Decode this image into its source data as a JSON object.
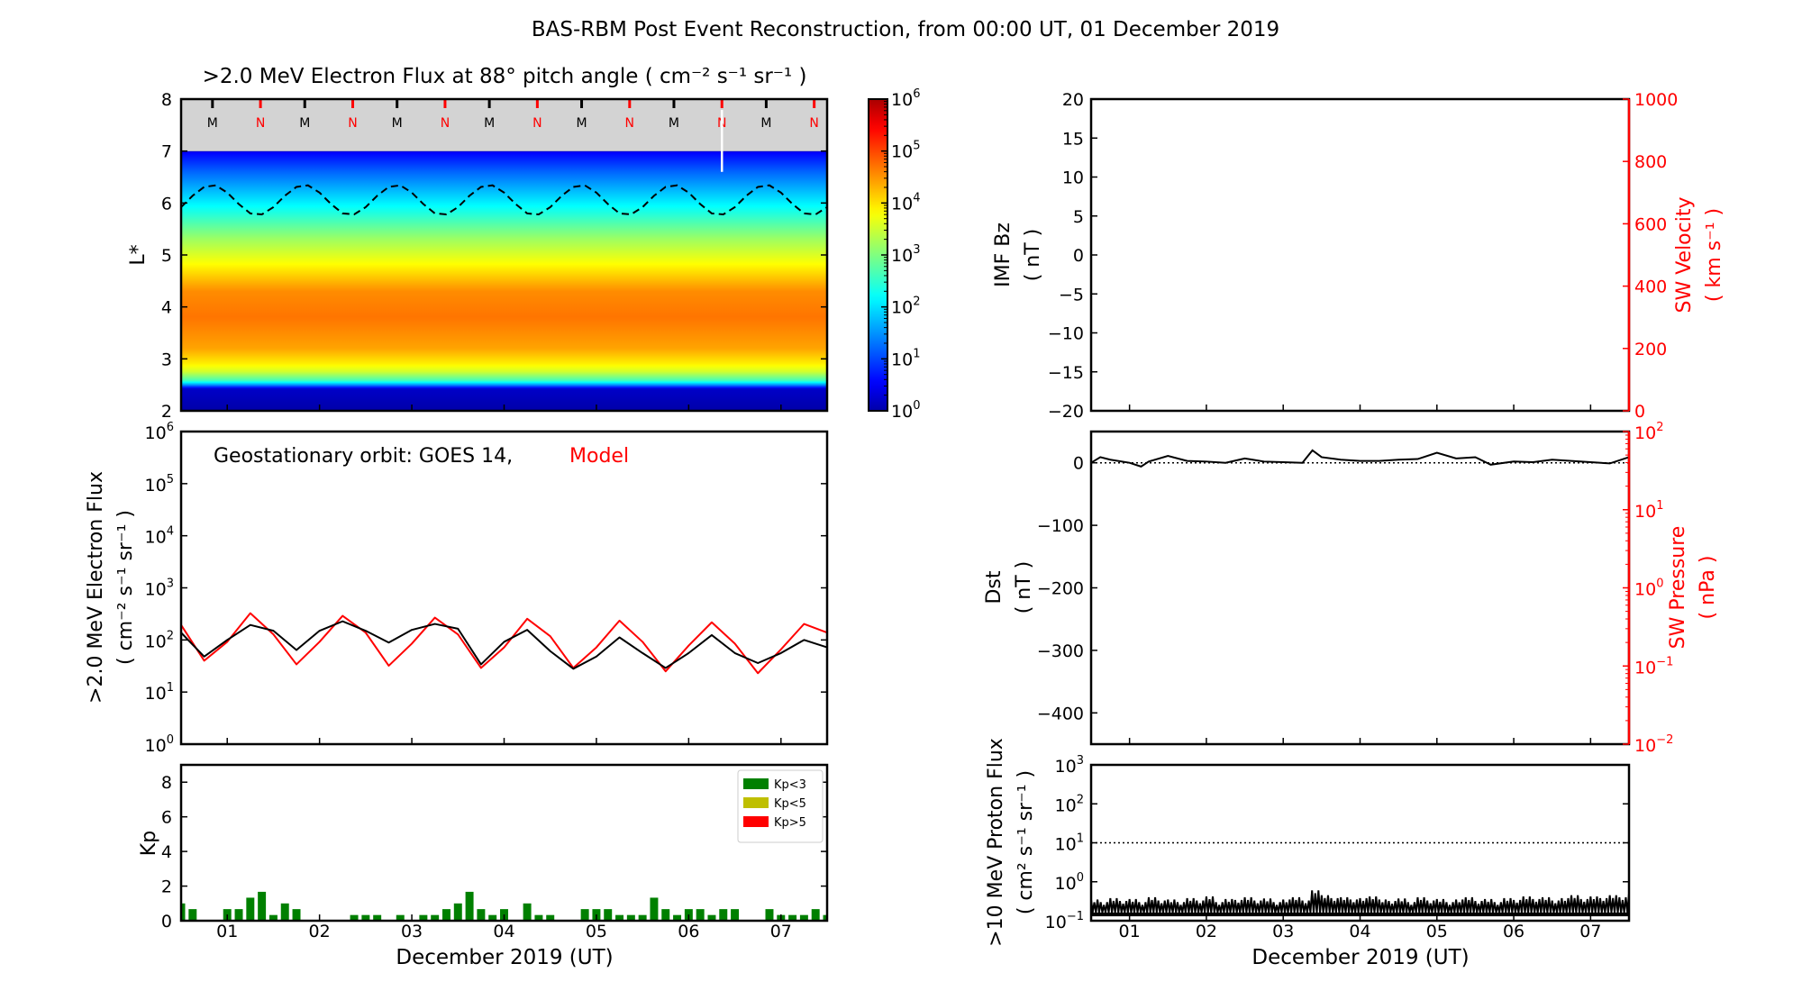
{
  "title": "BAS-RBM Post Event Reconstruction, from 00:00 UT, 01 December 2019",
  "chart_data": [
    {
      "id": "lstar_flux",
      "type": "heatmap",
      "title": ">2.0 MeV Electron Flux at 88° pitch angle ( cm⁻² s⁻¹ sr⁻¹ )",
      "ylabel": "L*",
      "xlim": [
        0.5,
        7.5
      ],
      "ylim": [
        2,
        8
      ],
      "yticks": [
        2,
        3,
        4,
        5,
        6,
        7,
        8
      ],
      "no_data_above_L": 7,
      "no_data_color": "#d3d3d3",
      "colormap": "jet",
      "colorbar": {
        "scale": "log",
        "range_exp": [
          0,
          6
        ],
        "tick_exps": [
          0,
          1,
          2,
          3,
          4,
          5,
          6
        ],
        "tick_base": "10"
      },
      "flux_profile_log10": {
        "L": [
          2.0,
          2.42,
          2.5,
          2.58,
          2.75,
          2.9,
          3.2,
          3.8,
          4.3,
          4.8,
          5.3,
          5.8,
          6.2,
          6.6,
          7.0
        ],
        "log10_flux": [
          0.0,
          0.2,
          1.5,
          2.6,
          3.5,
          3.9,
          4.4,
          4.7,
          4.55,
          3.85,
          3.2,
          2.4,
          1.8,
          1.2,
          0.5
        ]
      },
      "magnetopause_dashed": {
        "x_start": 0.5,
        "x_step_days": 0.125,
        "L": [
          5.92,
          6.14,
          6.31,
          6.34,
          6.2,
          5.98,
          5.8,
          5.78,
          5.92,
          6.14,
          6.31,
          6.34,
          6.2,
          5.98,
          5.8,
          5.78,
          5.92,
          6.14,
          6.31,
          6.34,
          6.2,
          5.98,
          5.8,
          5.78,
          5.92,
          6.14,
          6.31,
          6.34,
          6.2,
          5.98,
          5.8,
          5.78,
          5.92,
          6.14,
          6.31,
          6.34,
          6.2,
          5.98,
          5.8,
          5.78,
          5.92,
          6.14,
          6.31,
          6.34,
          6.2,
          5.98,
          5.8,
          5.78,
          5.92,
          6.14,
          6.31,
          6.34,
          6.2,
          5.98,
          5.8,
          5.78,
          5.92
        ]
      },
      "local_time_markers": [
        {
          "label": "M",
          "color": "#000000",
          "days": [
            0.84,
            1.84,
            2.84,
            3.84,
            4.84,
            5.84,
            6.84
          ]
        },
        {
          "label": "N",
          "color": "#ff0000",
          "days": [
            1.36,
            2.36,
            3.36,
            4.36,
            5.36,
            6.36,
            7.36
          ]
        }
      ],
      "white_line": {
        "x": 6.36,
        "L_from": 8,
        "L_to": 6.6
      }
    },
    {
      "id": "geo_flux",
      "type": "line",
      "ylabel": [
        ">2.0 MeV Electron Flux",
        "( cm⁻² s⁻¹ sr⁻¹ )"
      ],
      "annotation": {
        "text": "Geostationary orbit:   GOES 14,",
        "model_text": "Model"
      },
      "xlim": [
        0.5,
        7.5
      ],
      "yscale": "log",
      "ylim": [
        1,
        1000000
      ],
      "tick_exps": [
        0,
        1,
        2,
        3,
        4,
        5,
        6
      ],
      "tick_base": "10",
      "x": [
        0.5,
        0.75,
        1.0,
        1.25,
        1.5,
        1.75,
        2.0,
        2.25,
        2.5,
        2.75,
        3.0,
        3.25,
        3.5,
        3.75,
        4.0,
        4.25,
        4.5,
        4.75,
        5.0,
        5.25,
        5.5,
        5.75,
        6.0,
        6.25,
        6.5,
        6.75,
        7.0,
        7.25,
        7.5
      ],
      "series": [
        {
          "name": "GOES 14",
          "color": "#000000",
          "values": [
            138,
            48,
            100,
            194,
            150,
            64,
            150,
            228,
            150,
            89,
            156,
            203,
            164,
            34,
            92,
            156,
            61,
            28,
            48,
            112,
            56,
            29,
            56,
            124,
            56,
            36,
            56,
            100,
            72
          ]
        },
        {
          "name": "Model",
          "color": "#ff0000",
          "values": [
            194,
            40,
            92,
            326,
            128,
            34,
            92,
            290,
            138,
            32,
            85,
            268,
            128,
            29,
            72,
            255,
            118,
            29,
            72,
            235,
            92,
            25,
            78,
            218,
            85,
            23,
            66,
            203,
            138
          ]
        }
      ]
    },
    {
      "id": "kp",
      "type": "bar",
      "ylabel": "Kp",
      "xlabel": "December 2019 (UT)",
      "xlim": [
        0.5,
        7.5
      ],
      "ylim": [
        0,
        9
      ],
      "yticks": [
        0,
        2,
        4,
        6,
        8
      ],
      "xtick_labels": [
        "01",
        "02",
        "03",
        "04",
        "05",
        "06",
        "07"
      ],
      "xtick_values": [
        1,
        2,
        3,
        4,
        5,
        6,
        7
      ],
      "legend": [
        {
          "label": "Kp<3",
          "color": "#008000"
        },
        {
          "label": "Kp<5",
          "color": "#bfbf00"
        },
        {
          "label": "Kp>5",
          "color": "#ff0000"
        }
      ],
      "legend_position": "top-right",
      "x_start": 0.5,
      "x_step_days": 0.125,
      "values": [
        1.0,
        0.67,
        0,
        0,
        0.67,
        0.67,
        1.33,
        1.67,
        0.33,
        1.0,
        0.67,
        0,
        0,
        0,
        0,
        0.33,
        0.33,
        0.33,
        0,
        0.33,
        0,
        0.33,
        0.33,
        0.67,
        1.0,
        1.67,
        0.67,
        0.33,
        0.67,
        0,
        1.0,
        0.33,
        0.33,
        0,
        0,
        0.67,
        0.67,
        0.67,
        0.33,
        0.33,
        0.33,
        1.33,
        0.67,
        0.33,
        0.67,
        0.67,
        0.33,
        0.67,
        0.67,
        0,
        0,
        0.67,
        0.33,
        0.33,
        0.33,
        0.67,
        0.33
      ]
    },
    {
      "id": "imf_bz",
      "type": "line",
      "ylabel": [
        "IMF Bz",
        "( nT )"
      ],
      "ylabel_right": [
        "SW Velocity",
        "( km s⁻¹ )"
      ],
      "right_color": "#ff0000",
      "xlim": [
        0.5,
        7.5
      ],
      "ylim": [
        -20,
        20
      ],
      "yticks": [
        -20,
        -15,
        -10,
        -5,
        0,
        5,
        10,
        15,
        20
      ],
      "ylim_right": [
        0,
        1000
      ],
      "yticks_right": [
        0,
        200,
        400,
        600,
        800,
        1000
      ],
      "series": []
    },
    {
      "id": "dst",
      "type": "line",
      "ylabel": [
        "Dst",
        "( nT )"
      ],
      "ylabel_right": [
        "SW Pressure",
        "( nPa )"
      ],
      "right_color": "#ff0000",
      "xlim": [
        0.5,
        7.5
      ],
      "ylim": [
        -450,
        50
      ],
      "yticks": [
        0,
        -100,
        -200,
        -300,
        -400
      ],
      "right_scale": "log",
      "right_tick_exps": [
        -2,
        -1,
        0,
        1,
        2
      ],
      "tick_base": "10",
      "zero_line": 0,
      "x": [
        0.5,
        0.62,
        0.75,
        1.0,
        1.15,
        1.25,
        1.5,
        1.75,
        2.0,
        2.25,
        2.5,
        2.75,
        3.0,
        3.25,
        3.38,
        3.5,
        3.75,
        4.0,
        4.25,
        4.5,
        4.75,
        5.0,
        5.25,
        5.5,
        5.7,
        6.0,
        6.25,
        6.5,
        6.75,
        7.0,
        7.25,
        7.5
      ],
      "series": [
        {
          "name": "Dst",
          "color": "#000000",
          "values": [
            0,
            9,
            5,
            0,
            -6,
            2,
            11,
            3,
            2,
            0,
            7,
            2,
            1,
            0,
            20,
            9,
            5,
            3,
            3,
            5,
            6,
            16,
            7,
            9,
            -3,
            2,
            1,
            5,
            3,
            1,
            -1,
            9
          ]
        }
      ]
    },
    {
      "id": "proton_flux",
      "type": "line",
      "ylabel": [
        ">10 MeV Proton Flux",
        "( cm² s⁻¹ sr⁻¹ )"
      ],
      "xlabel": "December 2019 (UT)",
      "xlim": [
        0.5,
        7.5
      ],
      "yscale": "log",
      "ylim": [
        0.1,
        1000
      ],
      "tick_exps": [
        -1,
        0,
        1,
        2,
        3
      ],
      "tick_base": "10",
      "xtick_labels": [
        "01",
        "02",
        "03",
        "04",
        "05",
        "06",
        "07"
      ],
      "xtick_values": [
        1,
        2,
        3,
        4,
        5,
        6,
        7
      ],
      "threshold": 10,
      "x_start": 0.5,
      "x_step_days": 0.125,
      "floor": 0.13,
      "values": [
        0.35,
        0.3,
        0.38,
        0.32,
        0.36,
        0.3,
        0.4,
        0.33,
        0.35,
        0.3,
        0.38,
        0.33,
        0.42,
        0.3,
        0.36,
        0.34,
        0.4,
        0.33,
        0.37,
        0.3,
        0.35,
        0.4,
        0.33,
        0.6,
        0.45,
        0.38,
        0.4,
        0.35,
        0.38,
        0.42,
        0.35,
        0.32,
        0.37,
        0.3,
        0.4,
        0.33,
        0.36,
        0.3,
        0.35,
        0.4,
        0.32,
        0.36,
        0.3,
        0.38,
        0.34,
        0.42,
        0.36,
        0.4,
        0.33,
        0.38,
        0.45,
        0.36,
        0.42,
        0.38,
        0.45,
        0.4,
        0.5
      ]
    }
  ]
}
